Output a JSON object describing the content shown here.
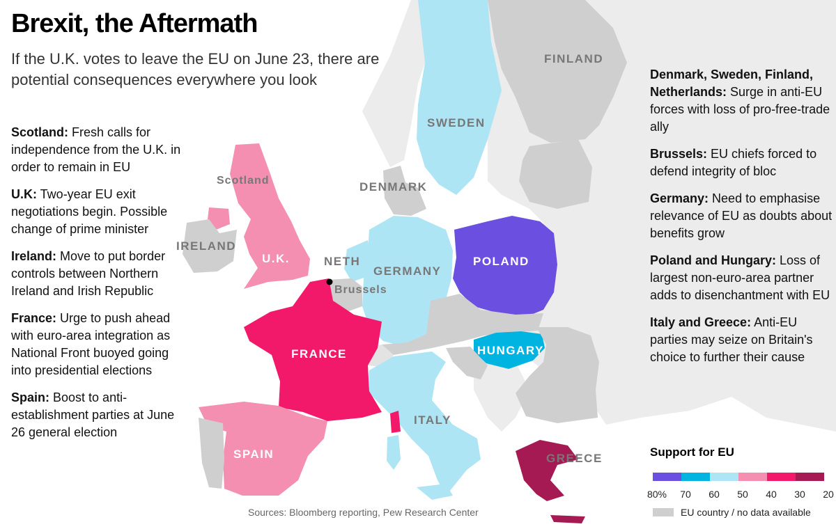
{
  "title": "Brexit, the Aftermath",
  "subtitle": "If the U.K. votes to leave the EU on June 23, there are potential consequences everywhere you look",
  "left_notes": [
    {
      "head": "Scotland:",
      "text": " Fresh calls for independence from the U.K. in order to remain in EU"
    },
    {
      "head": "U.K:",
      "text": " Two-year EU exit negotiations begin. Possible change of prime minister"
    },
    {
      "head": "Ireland:",
      "text": " Move to put border controls between Northern Ireland and Irish Republic"
    },
    {
      "head": "France:",
      "text": " Urge to push ahead with euro-area integration as National Front buoyed going into presidential elections"
    },
    {
      "head": "Spain:",
      "text": " Boost to anti-establishment parties at June 26 general election"
    }
  ],
  "right_notes": [
    {
      "head": "Denmark, Sweden, Finland, Netherlands:",
      "text": " Surge in anti-EU forces with loss of pro-free-trade ally"
    },
    {
      "head": "Brussels:",
      "text": " EU chiefs forced to defend integrity of bloc"
    },
    {
      "head": "Germany:",
      "text": " Need to emphasise relevance of EU as doubts about benefits grow"
    },
    {
      "head": "Poland and Hungary:",
      "text": " Loss of largest non-euro-area partner adds to disenchantment with EU"
    },
    {
      "head": "Italy and Greece:",
      "text": " Anti-EU parties may seize on Britain's choice to further their cause"
    }
  ],
  "map_labels": {
    "finland": "FINLAND",
    "sweden": "SWEDEN",
    "denmark": "DENMARK",
    "scotland": "Scotland",
    "ireland": "IRELAND",
    "uk": "U.K.",
    "neth": "NETH",
    "brussels": "Brussels",
    "germany": "GERMANY",
    "poland": "POLAND",
    "france": "FRANCE",
    "hungary": "HUNGARY",
    "spain": "SPAIN",
    "italy": "ITALY",
    "greece": "GREECE"
  },
  "legend": {
    "title": "Support for EU",
    "ticks": [
      "80%",
      "70",
      "60",
      "50",
      "40",
      "30",
      "20"
    ],
    "colors": [
      "#6a4fe0",
      "#00b4e1",
      "#aee5f5",
      "#f48fb1",
      "#f2196b",
      "#a61a54"
    ],
    "nodata_label": "EU country / no data available",
    "nodata_color": "#cfcfcf"
  },
  "source": "Sources: Bloomberg reporting, Pew Research Center"
}
